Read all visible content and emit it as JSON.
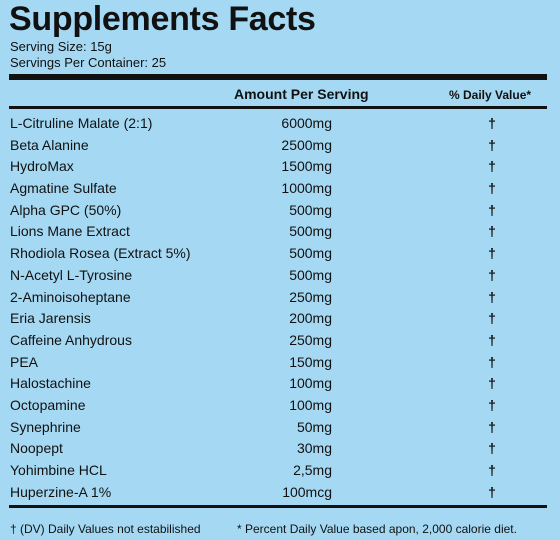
{
  "title": "Supplements Facts",
  "serving_size": "Serving Size: 15g",
  "servings_per_container": "Servings Per Container: 25",
  "header": {
    "amount": "Amount Per Serving",
    "daily_value": "% Daily Value*"
  },
  "ingredients": [
    {
      "name": "L-Citruline Malate (2:1)",
      "amount": "6000mg",
      "dv": "†"
    },
    {
      "name": "Beta Alanine",
      "amount": "2500mg",
      "dv": "†"
    },
    {
      "name": "HydroMax",
      "amount": "1500mg",
      "dv": "†"
    },
    {
      "name": "Agmatine Sulfate",
      "amount": "1000mg",
      "dv": "†"
    },
    {
      "name": "Alpha GPC (50%)",
      "amount": "500mg",
      "dv": "†"
    },
    {
      "name": "Lions Mane Extract",
      "amount": "500mg",
      "dv": "†"
    },
    {
      "name": "Rhodiola Rosea (Extract 5%)",
      "amount": "500mg",
      "dv": "†"
    },
    {
      "name": "N-Acetyl L-Tyrosine",
      "amount": "500mg",
      "dv": "†"
    },
    {
      "name": "2-Aminoisoheptane",
      "amount": "250mg",
      "dv": "†"
    },
    {
      "name": "Eria Jarensis",
      "amount": "200mg",
      "dv": "†"
    },
    {
      "name": "Caffeine Anhydrous",
      "amount": "250mg",
      "dv": "†"
    },
    {
      "name": "PEA",
      "amount": "150mg",
      "dv": "†"
    },
    {
      "name": "Halostachine",
      "amount": "100mg",
      "dv": "†"
    },
    {
      "name": "Octopamine",
      "amount": "100mg",
      "dv": "†"
    },
    {
      "name": "Synephrine",
      "amount": "50mg",
      "dv": "†"
    },
    {
      "name": "Noopept",
      "amount": "30mg",
      "dv": "†"
    },
    {
      "name": "Yohimbine HCL",
      "amount": "2,5mg",
      "dv": "†"
    },
    {
      "name": "Huperzine-A 1%",
      "amount": "100mcg",
      "dv": "†"
    }
  ],
  "footer": {
    "left": "† (DV) Daily Values not estabilished",
    "right": "* Percent Daily Value based apon, 2,000 calorie diet."
  },
  "colors": {
    "background": "#a5d9f3",
    "text": "#111111"
  }
}
